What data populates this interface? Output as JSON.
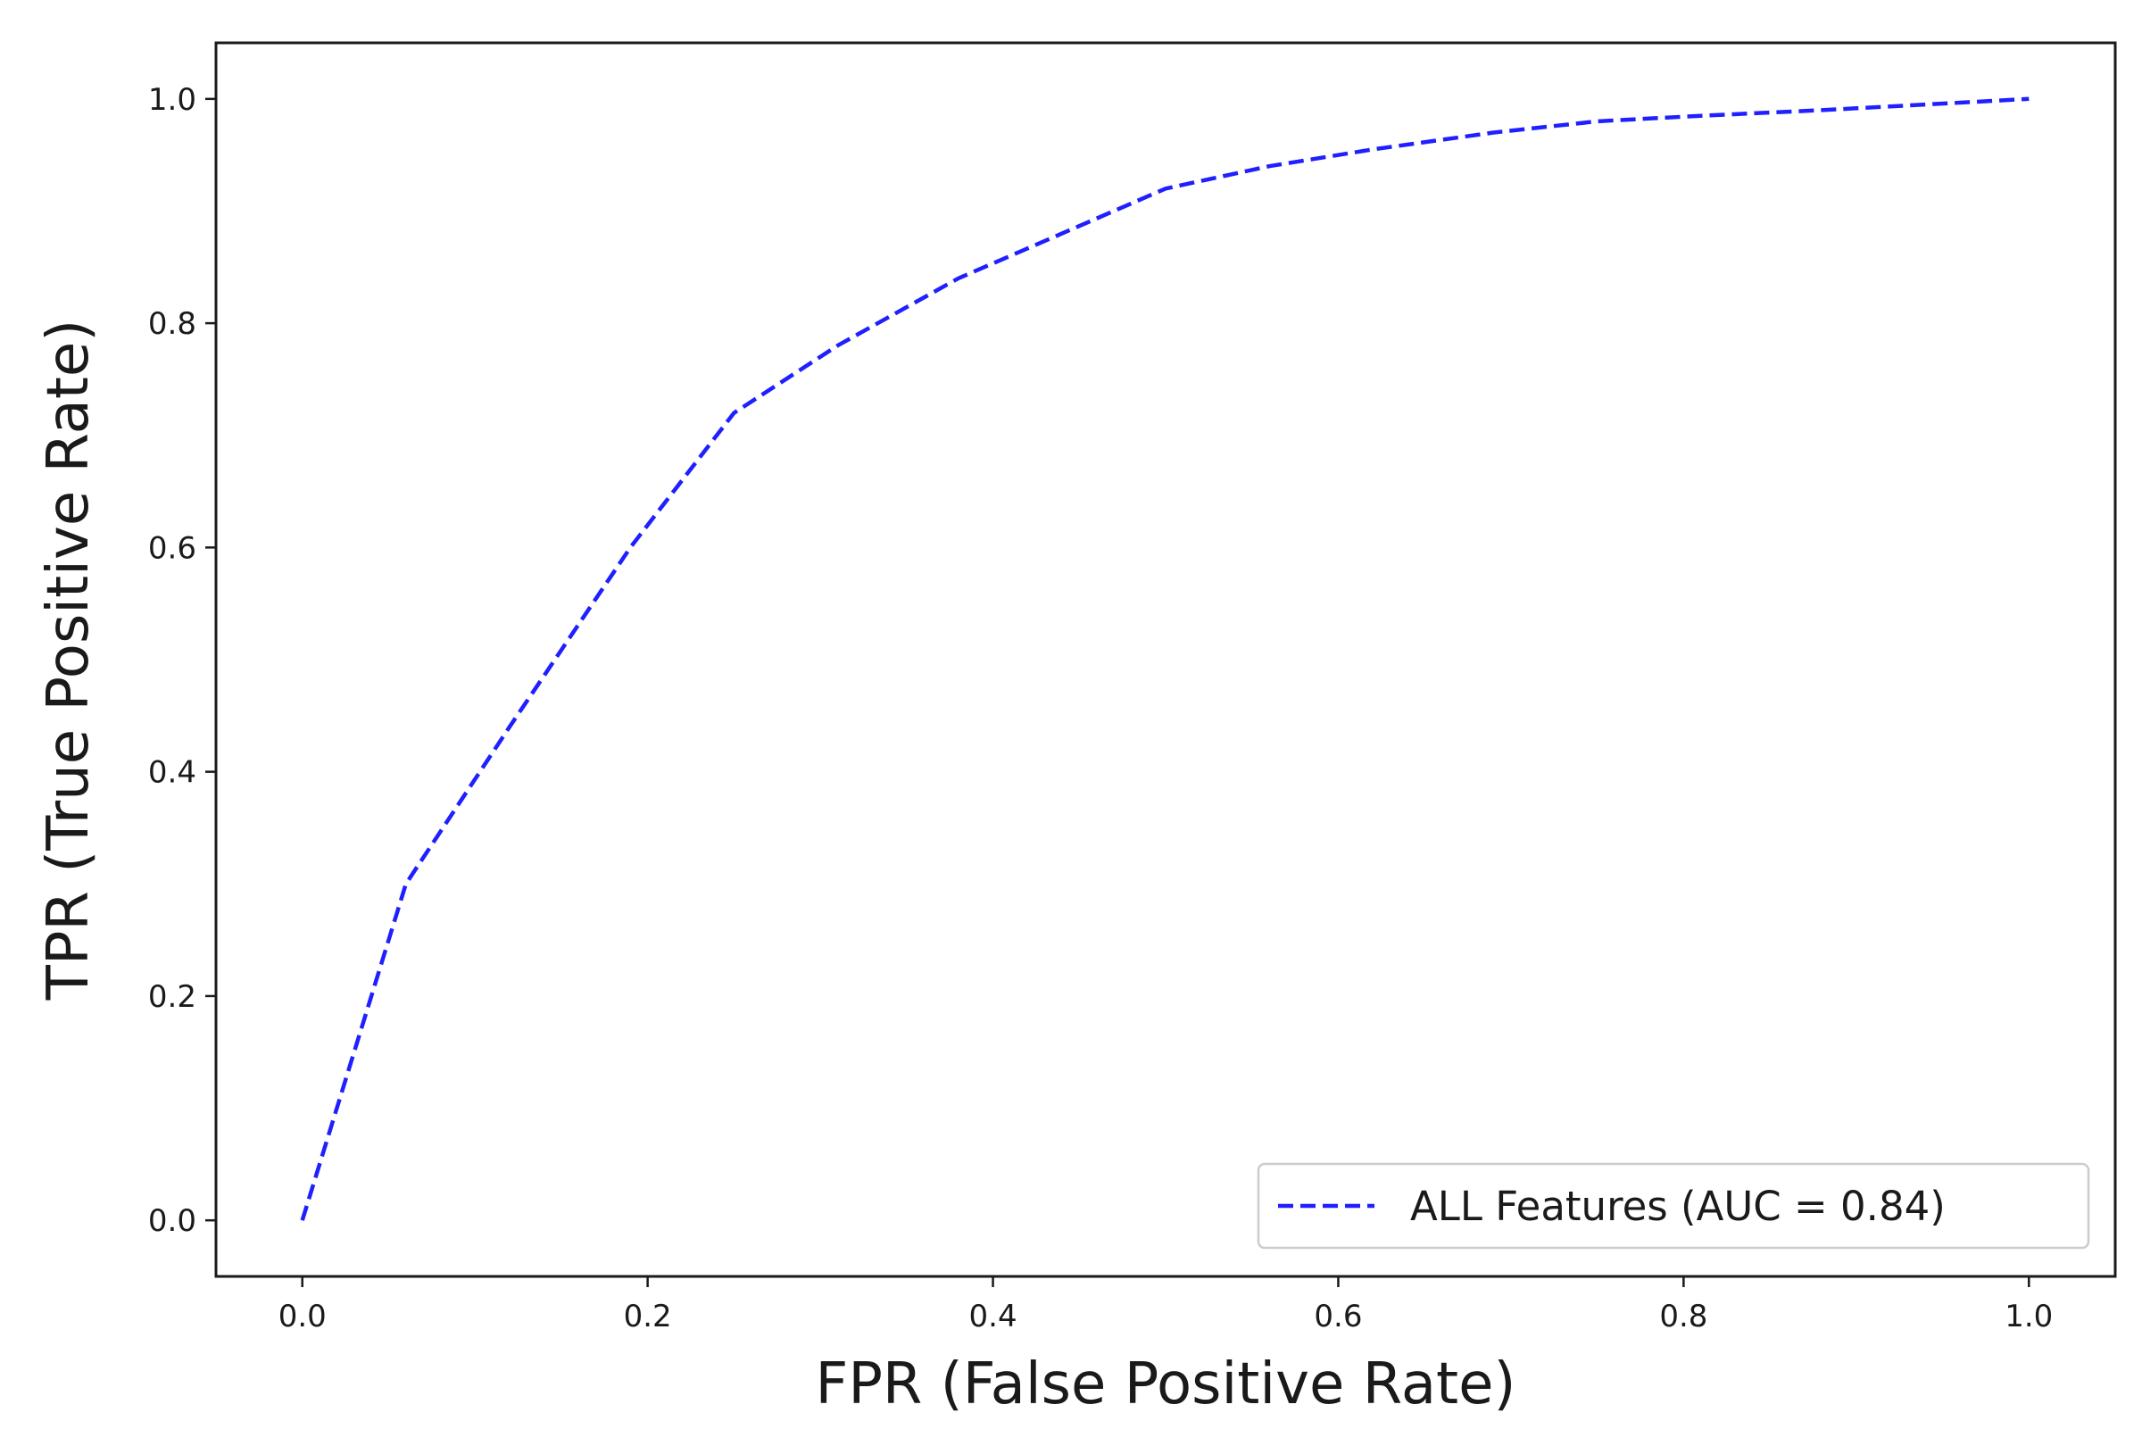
{
  "chart_data": {
    "type": "line",
    "title": "",
    "xlabel": "FPR (False Positive Rate)",
    "ylabel": "TPR (True Positive Rate)",
    "xlim": [
      -0.05,
      1.05
    ],
    "ylim": [
      -0.05,
      1.05
    ],
    "xticks": [
      0.0,
      0.2,
      0.4,
      0.6,
      0.8,
      1.0
    ],
    "yticks": [
      0.0,
      0.2,
      0.4,
      0.6,
      0.8,
      1.0
    ],
    "xtick_labels": [
      "0.0",
      "0.2",
      "0.4",
      "0.6",
      "0.8",
      "1.0"
    ],
    "ytick_labels": [
      "0.0",
      "0.2",
      "0.4",
      "0.6",
      "0.8",
      "1.0"
    ],
    "grid": false,
    "legend_position": "lower-right",
    "series": [
      {
        "name": "ALL Features (AUC = 0.84)",
        "color": "#1f1fff",
        "line_style": "dashed",
        "x": [
          0.0,
          0.06,
          0.12,
          0.19,
          0.25,
          0.31,
          0.38,
          0.44,
          0.5,
          0.56,
          0.62,
          0.69,
          0.75,
          0.81,
          0.88,
          0.94,
          1.0
        ],
        "y": [
          0.0,
          0.3,
          0.44,
          0.6,
          0.72,
          0.78,
          0.84,
          0.88,
          0.92,
          0.94,
          0.955,
          0.97,
          0.98,
          0.985,
          0.99,
          0.995,
          1.0
        ]
      }
    ]
  }
}
